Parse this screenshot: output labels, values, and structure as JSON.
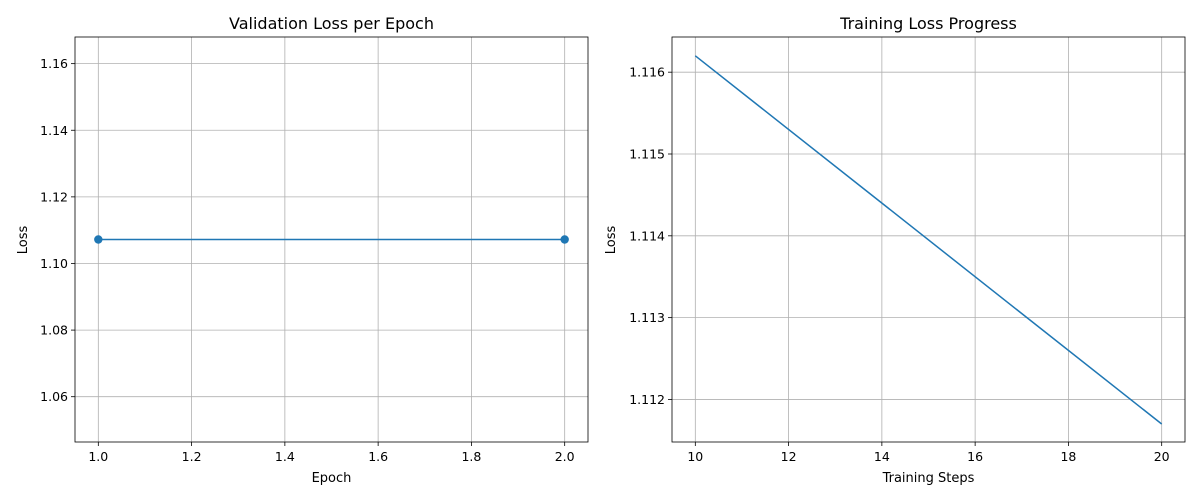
{
  "chart_data": [
    {
      "type": "line",
      "title": "Validation Loss per Epoch",
      "xlabel": "Epoch",
      "ylabel": "Loss",
      "xlim": [
        0.95,
        2.05
      ],
      "ylim": [
        1.0464,
        1.168
      ],
      "xticks": [
        "1.0",
        "1.2",
        "1.4",
        "1.6",
        "1.8",
        "2.0"
      ],
      "xtick_values": [
        1.0,
        1.2,
        1.4,
        1.6,
        1.8,
        2.0
      ],
      "yticks": [
        "1.06",
        "1.08",
        "1.10",
        "1.12",
        "1.14",
        "1.16"
      ],
      "ytick_values": [
        1.06,
        1.08,
        1.1,
        1.12,
        1.14,
        1.16
      ],
      "grid": true,
      "markers": true,
      "color": "#1f77b4",
      "series": [
        {
          "x": [
            1,
            2
          ],
          "y": [
            1.1072,
            1.1072
          ]
        }
      ]
    },
    {
      "type": "line",
      "title": "Training Loss Progress",
      "xlabel": "Training Steps",
      "ylabel": "Loss",
      "xlim": [
        9.5,
        20.5
      ],
      "ylim": [
        1.11148,
        1.11643
      ],
      "xticks": [
        "10",
        "12",
        "14",
        "16",
        "18",
        "20"
      ],
      "xtick_values": [
        10,
        12,
        14,
        16,
        18,
        20
      ],
      "yticks": [
        "1.112",
        "1.113",
        "1.114",
        "1.115",
        "1.116"
      ],
      "ytick_values": [
        1.112,
        1.113,
        1.114,
        1.115,
        1.116
      ],
      "grid": true,
      "markers": false,
      "color": "#1f77b4",
      "series": [
        {
          "x": [
            10,
            20
          ],
          "y": [
            1.1162,
            1.1117
          ]
        }
      ]
    }
  ]
}
